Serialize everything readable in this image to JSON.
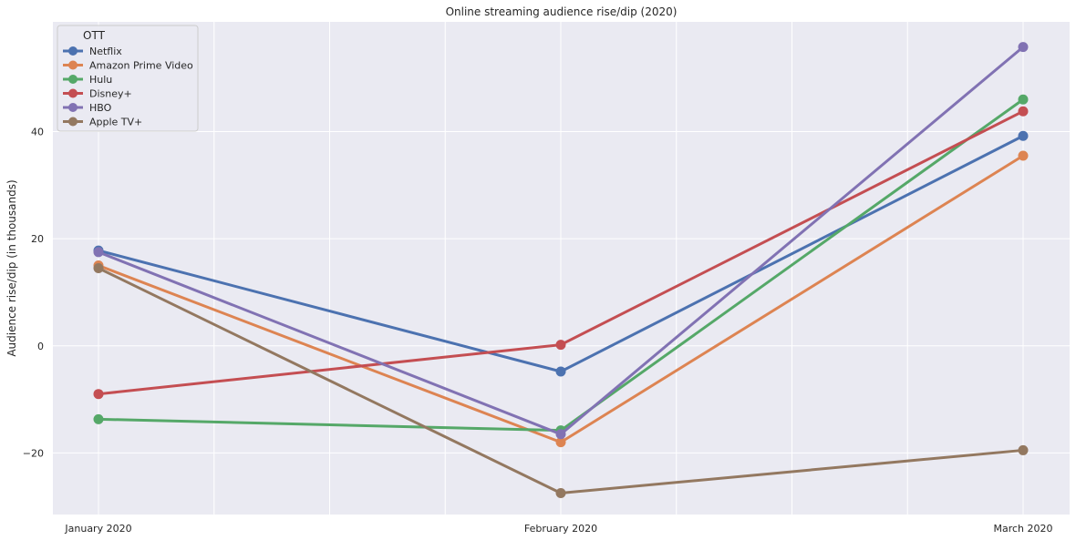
{
  "chart_data": {
    "type": "line",
    "title": "Online streaming audience rise/dip (2020)",
    "xlabel": "",
    "ylabel": "Audience rise/dip (in thousands)",
    "categories": [
      "January 2020",
      "February 2020",
      "March 2020"
    ],
    "y_ticks": [
      -20,
      0,
      20,
      40
    ],
    "ylim": [
      -31.5,
      60.5
    ],
    "grid": true,
    "legend": {
      "title": "OTT",
      "placement": "top-left"
    },
    "series": [
      {
        "name": "Netflix",
        "color": "#4c72b0",
        "values": [
          17.8,
          -4.8,
          39.2
        ]
      },
      {
        "name": "Amazon Prime Video",
        "color": "#dd8452",
        "values": [
          15.0,
          -18.0,
          35.5
        ]
      },
      {
        "name": "Hulu",
        "color": "#55a868",
        "values": [
          -13.7,
          -15.8,
          46.0
        ]
      },
      {
        "name": "Disney+",
        "color": "#c44e52",
        "values": [
          -9.0,
          0.2,
          43.8
        ]
      },
      {
        "name": "HBO",
        "color": "#8172b3",
        "values": [
          17.5,
          -16.5,
          55.8
        ]
      },
      {
        "name": "Apple TV+",
        "color": "#937860",
        "values": [
          14.5,
          -27.5,
          -19.5
        ]
      }
    ]
  }
}
